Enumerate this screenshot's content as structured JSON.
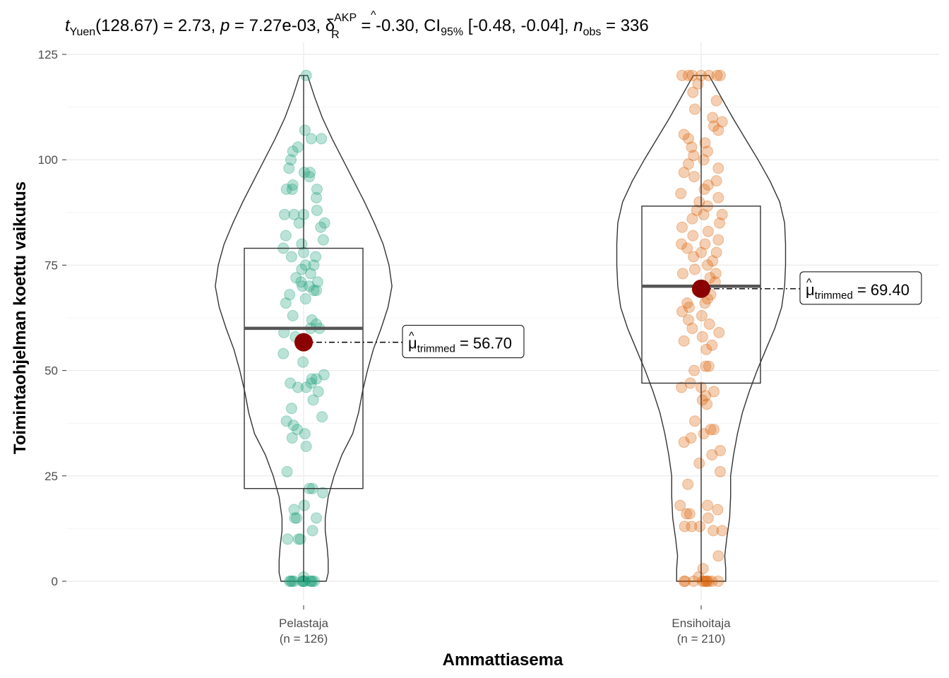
{
  "subtitle": {
    "stat_symbol": "t",
    "stat_sub": "Yuen",
    "stat_value": "(128.67) = 2.73, ",
    "p_symbol": "p",
    "p_value": " = 7.27e-03, ",
    "effect_symbol": "δ",
    "effect_sup": "AKP",
    "effect_sub": "R",
    "effect_value": " = -0.30, CI",
    "ci_sub": "95%",
    "ci_value": " [-0.48, -0.04], ",
    "n_symbol": "n",
    "n_sub": "obs",
    "n_value": " = 336"
  },
  "chart_data": {
    "type": "violin-box-scatter",
    "xlabel": "Ammattiasema",
    "ylabel": "Toimintaohjelman koettu vaikutus",
    "ylim": [
      0,
      125
    ],
    "yticks": [
      0,
      25,
      50,
      75,
      100,
      125
    ],
    "groups": [
      {
        "name": "Pelastaja",
        "n_label": "(n = 126)",
        "color": "#1B9E77",
        "box": {
          "q1": 22,
          "median": 60,
          "q3": 79,
          "min": 0,
          "max": 120
        },
        "trimmed_mean": 56.7,
        "mean_label": {
          "prefix": "μ",
          "sub": "trimmed",
          "value": " = 56.70"
        },
        "violin": [
          [
            0,
            0.23
          ],
          [
            2,
            0.25
          ],
          [
            5,
            0.25
          ],
          [
            8,
            0.24
          ],
          [
            12,
            0.22
          ],
          [
            15,
            0.22
          ],
          [
            20,
            0.25
          ],
          [
            25,
            0.31
          ],
          [
            30,
            0.39
          ],
          [
            35,
            0.5
          ],
          [
            40,
            0.56
          ],
          [
            45,
            0.6
          ],
          [
            50,
            0.65
          ],
          [
            55,
            0.71
          ],
          [
            60,
            0.79
          ],
          [
            65,
            0.86
          ],
          [
            70,
            0.9
          ],
          [
            75,
            0.87
          ],
          [
            80,
            0.81
          ],
          [
            85,
            0.72
          ],
          [
            90,
            0.62
          ],
          [
            95,
            0.51
          ],
          [
            100,
            0.4
          ],
          [
            105,
            0.29
          ],
          [
            110,
            0.19
          ],
          [
            115,
            0.11
          ],
          [
            120,
            0.04
          ]
        ],
        "points": [
          [
            0,
            -0.22
          ],
          [
            0,
            -0.2
          ],
          [
            0,
            -0.18
          ],
          [
            0,
            -0.15
          ],
          [
            0,
            -0.02
          ],
          [
            0,
            -0.01
          ],
          [
            0,
            0.0
          ],
          [
            0,
            0.02
          ],
          [
            0,
            0.1
          ],
          [
            0,
            0.12
          ],
          [
            0,
            0.14
          ],
          [
            0,
            0.17
          ],
          [
            1,
            0.0
          ],
          [
            10,
            -0.25
          ],
          [
            10,
            -0.08
          ],
          [
            10,
            -0.05
          ],
          [
            12,
            0.14
          ],
          [
            15,
            -0.14
          ],
          [
            15,
            -0.11
          ],
          [
            15,
            0.2
          ],
          [
            17,
            -0.15
          ],
          [
            18,
            0.01
          ],
          [
            21,
            0.3
          ],
          [
            22,
            0.09
          ],
          [
            22,
            0.14
          ],
          [
            26,
            -0.26
          ],
          [
            32,
            0.04
          ],
          [
            34,
            -0.18
          ],
          [
            35,
            0.02
          ],
          [
            36,
            -0.1
          ],
          [
            37,
            -0.16
          ],
          [
            38,
            -0.27
          ],
          [
            39,
            0.29
          ],
          [
            41,
            -0.19
          ],
          [
            43,
            0.15
          ],
          [
            45,
            0.23
          ],
          [
            46,
            -0.09
          ],
          [
            46,
            0.04
          ],
          [
            47,
            -0.21
          ],
          [
            47,
            0.12
          ],
          [
            48,
            0.13
          ],
          [
            48,
            0.2
          ],
          [
            49,
            0.32
          ],
          [
            52,
            -0.01
          ],
          [
            54,
            -0.32
          ],
          [
            58,
            -0.13
          ],
          [
            59,
            -0.31
          ],
          [
            60,
            0.11
          ],
          [
            60,
            0.25
          ],
          [
            61,
            0.2
          ],
          [
            62,
            0.13
          ],
          [
            63,
            -0.17
          ],
          [
            66,
            -0.28
          ],
          [
            67,
            0.03
          ],
          [
            68,
            -0.22
          ],
          [
            69,
            0.16
          ],
          [
            69,
            0.2
          ],
          [
            70,
            -0.02
          ],
          [
            70,
            0.09
          ],
          [
            71,
            -0.04
          ],
          [
            71,
            0.22
          ],
          [
            72,
            -0.12
          ],
          [
            73,
            0.11
          ],
          [
            74,
            -0.03
          ],
          [
            75,
            0.03
          ],
          [
            75,
            0.16
          ],
          [
            77,
            -0.19
          ],
          [
            77,
            0.19
          ],
          [
            78,
            0.0
          ],
          [
            79,
            -0.32
          ],
          [
            80,
            -0.03
          ],
          [
            81,
            0.31
          ],
          [
            82,
            -0.28
          ],
          [
            84,
            0.27
          ],
          [
            85,
            0.33
          ],
          [
            85,
            -0.07
          ],
          [
            87,
            -0.15
          ],
          [
            87,
            -0.3
          ],
          [
            87,
            0.0
          ],
          [
            88,
            0.21
          ],
          [
            91,
            0.2
          ],
          [
            93,
            -0.27
          ],
          [
            93,
            -0.18
          ],
          [
            93,
            0.21
          ],
          [
            94,
            -0.17
          ],
          [
            96,
            0.09
          ],
          [
            97,
            0.1
          ],
          [
            97,
            0.01
          ],
          [
            98,
            -0.23
          ],
          [
            100,
            -0.2
          ],
          [
            102,
            -0.17
          ],
          [
            103,
            -0.09
          ],
          [
            105,
            0.12
          ],
          [
            105,
            0.28
          ],
          [
            107,
            0.02
          ],
          [
            120,
            0.04
          ]
        ]
      },
      {
        "name": "Ensihoitaja",
        "n_label": "(n = 210)",
        "color": "#D95F02",
        "box": {
          "q1": 47,
          "median": 70,
          "q3": 89,
          "min": 0,
          "max": 120
        },
        "trimmed_mean": 69.4,
        "mean_label": {
          "prefix": "μ",
          "sub": "trimmed",
          "value": " = 69.40"
        },
        "violin": [
          [
            0,
            0.25
          ],
          [
            3,
            0.25
          ],
          [
            6,
            0.24
          ],
          [
            10,
            0.26
          ],
          [
            15,
            0.29
          ],
          [
            20,
            0.3
          ],
          [
            25,
            0.3
          ],
          [
            30,
            0.33
          ],
          [
            35,
            0.37
          ],
          [
            40,
            0.42
          ],
          [
            45,
            0.49
          ],
          [
            50,
            0.57
          ],
          [
            55,
            0.66
          ],
          [
            60,
            0.75
          ],
          [
            65,
            0.82
          ],
          [
            70,
            0.85
          ],
          [
            75,
            0.86
          ],
          [
            80,
            0.86
          ],
          [
            85,
            0.85
          ],
          [
            90,
            0.8
          ],
          [
            95,
            0.7
          ],
          [
            100,
            0.58
          ],
          [
            105,
            0.45
          ],
          [
            110,
            0.32
          ],
          [
            115,
            0.2
          ],
          [
            120,
            0.08
          ]
        ],
        "points": [
          [
            0,
            -0.27
          ],
          [
            0,
            -0.25
          ],
          [
            0,
            -0.12
          ],
          [
            0,
            0.02
          ],
          [
            0,
            0.05
          ],
          [
            0,
            0.08
          ],
          [
            0,
            0.09
          ],
          [
            0,
            0.12
          ],
          [
            0,
            0.17
          ],
          [
            0,
            0.27
          ],
          [
            1,
            -0.04
          ],
          [
            3,
            0.03
          ],
          [
            6,
            0.27
          ],
          [
            12,
            0.19
          ],
          [
            12,
            0.33
          ],
          [
            13,
            -0.15
          ],
          [
            13,
            -0.26
          ],
          [
            13,
            -0.02
          ],
          [
            15,
            0.11
          ],
          [
            16,
            -0.23
          ],
          [
            16,
            -0.18
          ],
          [
            17,
            0.26
          ],
          [
            18,
            -0.33
          ],
          [
            18,
            0.1
          ],
          [
            23,
            -0.21
          ],
          [
            26,
            0.3
          ],
          [
            28,
            -0.03
          ],
          [
            30,
            0.17
          ],
          [
            31,
            0.3
          ],
          [
            33,
            -0.27
          ],
          [
            34,
            -0.16
          ],
          [
            35,
            0.04
          ],
          [
            36,
            0.15
          ],
          [
            36,
            0.2
          ],
          [
            38,
            -0.1
          ],
          [
            42,
            0.09
          ],
          [
            43,
            0.02
          ],
          [
            44,
            0.07
          ],
          [
            45,
            0.2
          ],
          [
            46,
            0.0
          ],
          [
            46,
            -0.31
          ],
          [
            47,
            -0.17
          ],
          [
            50,
            -0.11
          ],
          [
            51,
            0.12
          ],
          [
            51,
            0.07
          ],
          [
            55,
            0.08
          ],
          [
            56,
            0.17
          ],
          [
            57,
            -0.27
          ],
          [
            58,
            0.02
          ],
          [
            59,
            0.28
          ],
          [
            60,
            -0.14
          ],
          [
            61,
            0.13
          ],
          [
            62,
            -0.2
          ],
          [
            63,
            0.01
          ],
          [
            64,
            -0.3
          ],
          [
            65,
            -0.19
          ],
          [
            66,
            0.06
          ],
          [
            66,
            -0.22
          ],
          [
            67,
            0.1
          ],
          [
            68,
            0.15
          ],
          [
            69,
            -0.06
          ],
          [
            70,
            0.03
          ],
          [
            71,
            0.22
          ],
          [
            72,
            0.14
          ],
          [
            73,
            -0.29
          ],
          [
            73,
            0.23
          ],
          [
            74,
            -0.1
          ],
          [
            75,
            0.1
          ],
          [
            76,
            0.18
          ],
          [
            77,
            -0.12
          ],
          [
            78,
            0.0
          ],
          [
            78,
            0.24
          ],
          [
            79,
            -0.22
          ],
          [
            80,
            -0.31
          ],
          [
            80,
            0.06
          ],
          [
            81,
            0.27
          ],
          [
            82,
            -0.13
          ],
          [
            83,
            0.11
          ],
          [
            84,
            -0.3
          ],
          [
            85,
            0.29
          ],
          [
            86,
            -0.14
          ],
          [
            87,
            0.04
          ],
          [
            87,
            0.33
          ],
          [
            88,
            -0.07
          ],
          [
            89,
            0.1
          ],
          [
            90,
            -0.03
          ],
          [
            91,
            0.27
          ],
          [
            92,
            -0.32
          ],
          [
            93,
            0.05
          ],
          [
            94,
            0.11
          ],
          [
            95,
            0.24
          ],
          [
            96,
            -0.11
          ],
          [
            97,
            -0.27
          ],
          [
            98,
            0.27
          ],
          [
            99,
            -0.2
          ],
          [
            100,
            0.04
          ],
          [
            101,
            -0.12
          ],
          [
            102,
            0.1
          ],
          [
            103,
            -0.15
          ],
          [
            104,
            0.06
          ],
          [
            105,
            -0.2
          ],
          [
            106,
            -0.27
          ],
          [
            107,
            0.27
          ],
          [
            108,
            0.2
          ],
          [
            109,
            0.33
          ],
          [
            110,
            0.18
          ],
          [
            112,
            -0.1
          ],
          [
            114,
            0.24
          ],
          [
            116,
            -0.13
          ],
          [
            118,
            -0.05
          ],
          [
            120,
            -0.3
          ],
          [
            120,
            -0.2
          ],
          [
            120,
            -0.14
          ],
          [
            120,
            0.0
          ],
          [
            120,
            0.12
          ],
          [
            120,
            0.3
          ],
          [
            120,
            0.25
          ]
        ]
      }
    ]
  }
}
